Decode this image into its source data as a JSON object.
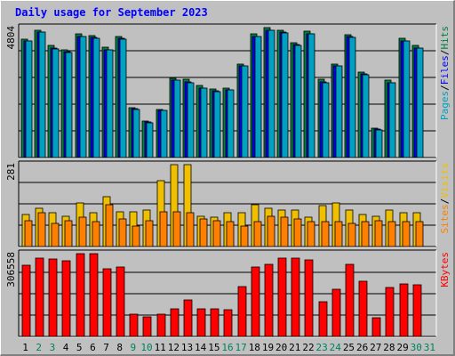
{
  "title": "Daily usage for September 2023",
  "colors": {
    "pages": "#00a0c0",
    "files": "#0000ff",
    "hits": "#008040",
    "visits": "#f0c000",
    "sites": "#ff8000",
    "kbytes": "#ff0000",
    "weekday": "#000000",
    "weekend": "#00805c"
  },
  "chart_data": [
    {
      "type": "bar",
      "panel": "top",
      "axis_max_label": "4804",
      "ylim": [
        0,
        4804
      ],
      "right_labels": [
        "Pages",
        "Files",
        "Hits"
      ],
      "categories": [
        "1",
        "2",
        "3",
        "4",
        "5",
        "6",
        "7",
        "8",
        "9",
        "10",
        "11",
        "12",
        "13",
        "14",
        "15",
        "16",
        "17",
        "18",
        "19",
        "20",
        "21",
        "22",
        "23",
        "24",
        "25",
        "26",
        "27",
        "28",
        "29",
        "30",
        "31"
      ],
      "series": [
        {
          "name": "Hits",
          "color": "#008040",
          "values": [
            4390,
            4720,
            4140,
            3980,
            4570,
            4520,
            4080,
            4480,
            1850,
            1350,
            1790,
            2940,
            2880,
            2650,
            2530,
            2560,
            3470,
            4560,
            4800,
            4720,
            4240,
            4660,
            2880,
            3470,
            4540,
            3160,
            1090,
            2850,
            4400,
            4140,
            0
          ]
        },
        {
          "name": "Files",
          "color": "#0000ff",
          "values": [
            4320,
            4650,
            4050,
            3900,
            4490,
            4430,
            3990,
            4400,
            1800,
            1300,
            1750,
            2870,
            2800,
            2580,
            2470,
            2500,
            3400,
            4480,
            4710,
            4640,
            4170,
            4580,
            2800,
            3400,
            4460,
            3080,
            1050,
            2780,
            4320,
            4060,
            0
          ]
        },
        {
          "name": "Pages",
          "color": "#00a0c0",
          "values": [
            4300,
            4640,
            4030,
            3880,
            4470,
            4410,
            3970,
            4380,
            1780,
            1280,
            1730,
            2850,
            2780,
            2560,
            2450,
            2490,
            3380,
            4460,
            4690,
            4620,
            4150,
            4560,
            2780,
            3380,
            4440,
            3060,
            1030,
            2760,
            4300,
            4040,
            0
          ]
        }
      ]
    },
    {
      "type": "bar",
      "panel": "middle",
      "axis_max_label": "281",
      "ylim": [
        0,
        281
      ],
      "right_labels": [
        "Sites",
        "Visits"
      ],
      "categories": [
        "1",
        "2",
        "3",
        "4",
        "5",
        "6",
        "7",
        "8",
        "9",
        "10",
        "11",
        "12",
        "13",
        "14",
        "15",
        "16",
        "17",
        "18",
        "19",
        "20",
        "21",
        "22",
        "23",
        "24",
        "25",
        "26",
        "27",
        "28",
        "29",
        "30",
        "31"
      ],
      "series": [
        {
          "name": "Visits",
          "color": "#f0c000",
          "values": [
            110,
            130,
            115,
            105,
            150,
            115,
            170,
            120,
            120,
            125,
            225,
            281,
            281,
            105,
            100,
            115,
            115,
            145,
            130,
            125,
            125,
            100,
            140,
            150,
            125,
            110,
            105,
            125,
            115,
            115,
            0
          ]
        },
        {
          "name": "Sites",
          "color": "#ff8000",
          "values": [
            90,
            115,
            80,
            90,
            100,
            85,
            145,
            95,
            70,
            90,
            120,
            120,
            115,
            95,
            90,
            85,
            70,
            85,
            105,
            100,
            95,
            85,
            85,
            85,
            80,
            85,
            90,
            85,
            85,
            85,
            0
          ]
        }
      ]
    },
    {
      "type": "bar",
      "panel": "bottom",
      "axis_max_label": "306558",
      "ylim": [
        0,
        306558
      ],
      "right_labels": [
        "KBytes"
      ],
      "categories": [
        "1",
        "2",
        "3",
        "4",
        "5",
        "6",
        "7",
        "8",
        "9",
        "10",
        "11",
        "12",
        "13",
        "14",
        "15",
        "16",
        "17",
        "18",
        "19",
        "20",
        "21",
        "22",
        "23",
        "24",
        "25",
        "26",
        "27",
        "28",
        "29",
        "30",
        "31"
      ],
      "series": [
        {
          "name": "KBytes",
          "color": "#ff0000",
          "values": [
            264000,
            289000,
            288000,
            281000,
            306000,
            306000,
            250000,
            257000,
            82000,
            71000,
            83000,
            102000,
            135000,
            102000,
            102000,
            100000,
            185000,
            256000,
            268000,
            289000,
            290000,
            282000,
            127000,
            174000,
            266000,
            204000,
            70000,
            180000,
            195000,
            190000,
            0
          ]
        }
      ]
    }
  ],
  "x_axis": {
    "days": [
      "1",
      "2",
      "3",
      "4",
      "5",
      "6",
      "7",
      "8",
      "9",
      "10",
      "11",
      "12",
      "13",
      "14",
      "15",
      "16",
      "17",
      "18",
      "19",
      "20",
      "21",
      "22",
      "23",
      "24",
      "25",
      "26",
      "27",
      "28",
      "29",
      "30",
      "31"
    ],
    "weekend_days": [
      "2",
      "3",
      "9",
      "10",
      "16",
      "17",
      "23",
      "24",
      "30",
      "31"
    ]
  }
}
